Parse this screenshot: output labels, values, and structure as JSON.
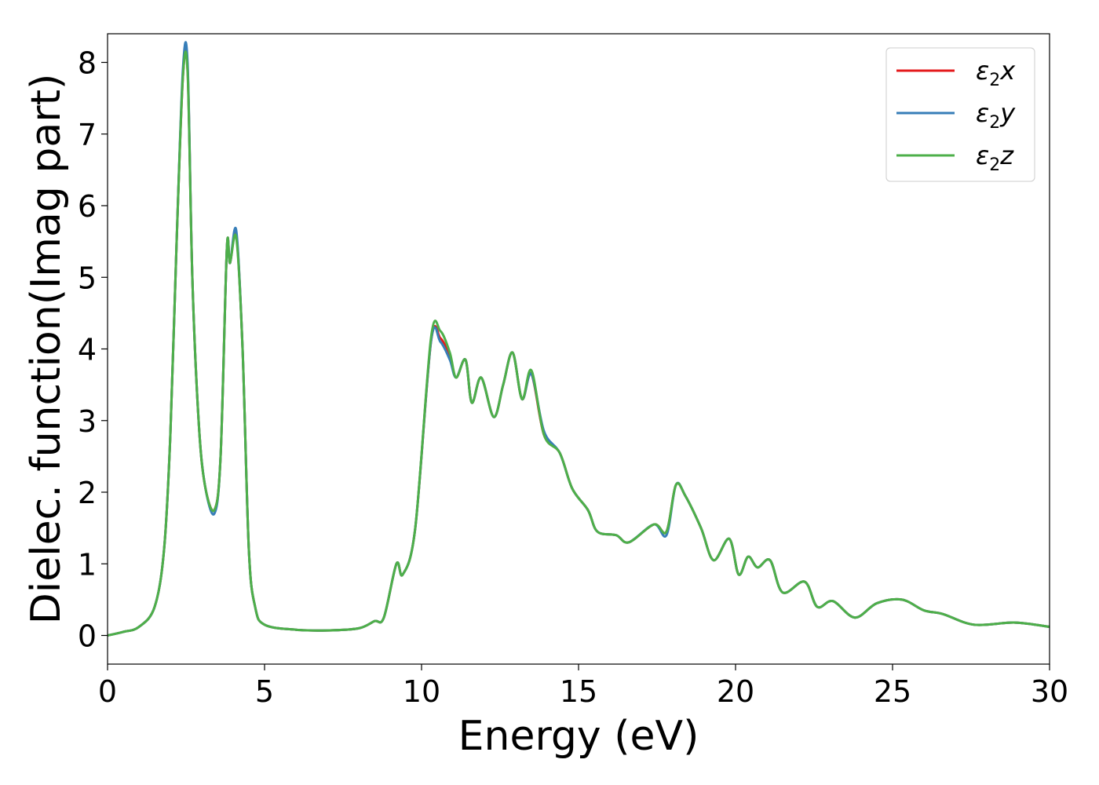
{
  "chart_data": {
    "type": "line",
    "title": "",
    "xlabel": "Energy (eV)",
    "ylabel": "Dielec. function(Imag part)",
    "xlim": [
      0,
      30
    ],
    "ylim": [
      -0.4,
      8.4
    ],
    "xticks": [
      0,
      5,
      10,
      15,
      20,
      25,
      30
    ],
    "yticks": [
      0,
      1,
      2,
      3,
      4,
      5,
      6,
      7,
      8
    ],
    "grid": false,
    "legend_position": "top-right",
    "series": [
      {
        "name": "ε₂x",
        "legend_base": "ε",
        "legend_sub": "2",
        "legend_suffix": "x",
        "color": "#e41a1c",
        "x": [
          0,
          0.5,
          1,
          1.5,
          1.8,
          2,
          2.2,
          2.4,
          2.55,
          2.7,
          2.9,
          3.1,
          3.4,
          3.6,
          3.8,
          3.9,
          4.1,
          4.3,
          4.5,
          4.7,
          5,
          6,
          7,
          8,
          8.5,
          8.8,
          9.2,
          9.4,
          9.8,
          10.3,
          10.6,
          10.9,
          11.1,
          11.4,
          11.6,
          11.9,
          12.3,
          12.6,
          12.9,
          13.2,
          13.5,
          13.9,
          14.4,
          14.8,
          15.3,
          15.6,
          16.2,
          16.6,
          17.4,
          17.8,
          18.1,
          18.4,
          18.9,
          19.3,
          19.8,
          20.1,
          20.4,
          20.7,
          21.1,
          21.5,
          22.2,
          22.6,
          23.1,
          23.8,
          24.5,
          25.3,
          26,
          26.6,
          27.6,
          28.9,
          30
        ],
        "y": [
          0,
          0.05,
          0.12,
          0.4,
          1.2,
          2.8,
          5.5,
          7.8,
          7.9,
          5.0,
          3.0,
          2.1,
          1.75,
          2.5,
          5.4,
          5.2,
          5.6,
          4.0,
          1.2,
          0.4,
          0.15,
          0.08,
          0.07,
          0.1,
          0.2,
          0.25,
          1.0,
          0.85,
          1.5,
          4.1,
          4.15,
          3.9,
          3.6,
          3.85,
          3.25,
          3.6,
          3.05,
          3.5,
          3.95,
          3.3,
          3.65,
          2.8,
          2.55,
          2.05,
          1.75,
          1.45,
          1.4,
          1.3,
          1.55,
          1.45,
          2.1,
          1.95,
          1.5,
          1.05,
          1.35,
          0.85,
          1.1,
          0.95,
          1.05,
          0.6,
          0.75,
          0.4,
          0.48,
          0.25,
          0.45,
          0.5,
          0.35,
          0.3,
          0.15,
          0.18,
          0.12
        ]
      },
      {
        "name": "ε₂y",
        "legend_base": "ε",
        "legend_sub": "2",
        "legend_suffix": "y",
        "color": "#377eb8",
        "x": [
          0,
          0.5,
          1,
          1.5,
          1.8,
          2,
          2.2,
          2.4,
          2.55,
          2.7,
          2.9,
          3.1,
          3.4,
          3.6,
          3.8,
          3.9,
          4.1,
          4.3,
          4.5,
          4.7,
          5,
          6,
          7,
          8,
          8.5,
          8.8,
          9.2,
          9.4,
          9.8,
          10.3,
          10.6,
          10.9,
          11.1,
          11.4,
          11.6,
          11.9,
          12.3,
          12.6,
          12.9,
          13.2,
          13.5,
          13.9,
          14.4,
          14.8,
          15.3,
          15.6,
          16.2,
          16.6,
          17.4,
          17.8,
          18.1,
          18.4,
          18.9,
          19.3,
          19.8,
          20.1,
          20.4,
          20.7,
          21.1,
          21.5,
          22.2,
          22.6,
          23.1,
          23.8,
          24.5,
          25.3,
          26,
          26.6,
          27.6,
          28.9,
          30
        ],
        "y": [
          0,
          0.05,
          0.12,
          0.4,
          1.2,
          2.8,
          5.5,
          7.9,
          7.98,
          5.0,
          3.0,
          2.1,
          1.7,
          2.5,
          5.4,
          5.2,
          5.65,
          4.0,
          1.2,
          0.4,
          0.15,
          0.08,
          0.07,
          0.1,
          0.2,
          0.25,
          1.0,
          0.85,
          1.5,
          4.1,
          4.1,
          3.85,
          3.6,
          3.85,
          3.25,
          3.6,
          3.05,
          3.5,
          3.95,
          3.3,
          3.65,
          2.85,
          2.55,
          2.05,
          1.75,
          1.45,
          1.4,
          1.3,
          1.55,
          1.4,
          2.1,
          1.95,
          1.5,
          1.05,
          1.35,
          0.85,
          1.1,
          0.95,
          1.05,
          0.6,
          0.75,
          0.4,
          0.48,
          0.25,
          0.45,
          0.5,
          0.35,
          0.3,
          0.15,
          0.18,
          0.12
        ]
      },
      {
        "name": "ε₂z",
        "legend_base": "ε",
        "legend_sub": "2",
        "legend_suffix": "z",
        "color": "#4daf4a",
        "x": [
          0,
          0.5,
          1,
          1.5,
          1.8,
          2,
          2.2,
          2.4,
          2.55,
          2.7,
          2.9,
          3.1,
          3.4,
          3.6,
          3.8,
          3.9,
          4.1,
          4.3,
          4.5,
          4.7,
          5,
          6,
          7,
          8,
          8.5,
          8.8,
          9.2,
          9.4,
          9.8,
          10.3,
          10.6,
          10.9,
          11.1,
          11.4,
          11.6,
          11.9,
          12.3,
          12.6,
          12.9,
          13.2,
          13.5,
          13.9,
          14.4,
          14.8,
          15.3,
          15.6,
          16.2,
          16.6,
          17.4,
          17.8,
          18.1,
          18.4,
          18.9,
          19.3,
          19.8,
          20.1,
          20.4,
          20.7,
          21.1,
          21.5,
          22.2,
          22.6,
          23.1,
          23.8,
          24.5,
          25.3,
          26,
          26.6,
          27.6,
          28.9,
          30
        ],
        "y": [
          0,
          0.05,
          0.12,
          0.4,
          1.2,
          2.8,
          5.5,
          7.8,
          7.85,
          5.0,
          3.0,
          2.1,
          1.75,
          2.5,
          5.4,
          5.2,
          5.55,
          4.0,
          1.2,
          0.4,
          0.15,
          0.08,
          0.07,
          0.1,
          0.2,
          0.25,
          1.0,
          0.85,
          1.5,
          4.15,
          4.25,
          3.95,
          3.6,
          3.85,
          3.25,
          3.6,
          3.05,
          3.5,
          3.95,
          3.3,
          3.7,
          2.8,
          2.55,
          2.05,
          1.75,
          1.45,
          1.4,
          1.3,
          1.55,
          1.45,
          2.1,
          1.95,
          1.5,
          1.05,
          1.35,
          0.85,
          1.1,
          0.95,
          1.05,
          0.6,
          0.75,
          0.4,
          0.48,
          0.25,
          0.45,
          0.5,
          0.35,
          0.3,
          0.15,
          0.18,
          0.12
        ]
      }
    ]
  }
}
